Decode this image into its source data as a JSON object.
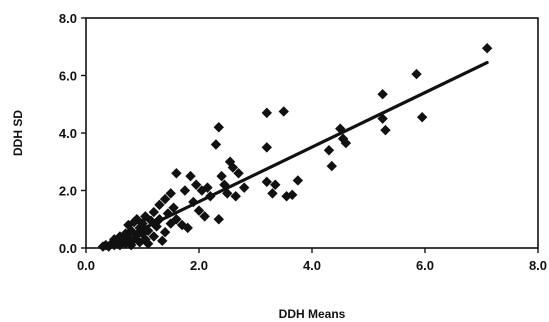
{
  "chart_data": {
    "type": "scatter",
    "title": "",
    "xlabel": "DDH Means",
    "ylabel": "DDH SD",
    "xlim": [
      0,
      8
    ],
    "ylim": [
      0,
      8
    ],
    "x_ticks": [
      "0.0",
      "2.0",
      "4.0",
      "6.0",
      "8.0"
    ],
    "y_ticks": [
      "0.0",
      "2.0",
      "4.0",
      "6.0",
      "8.0"
    ],
    "grid": false,
    "legend": "none",
    "marker": "diamond",
    "marker_color": "#111111",
    "series": [
      {
        "points": [
          [
            0.3,
            0.05
          ],
          [
            0.35,
            0.1
          ],
          [
            0.4,
            0.05
          ],
          [
            0.45,
            0.15
          ],
          [
            0.5,
            0.1
          ],
          [
            0.5,
            0.3
          ],
          [
            0.55,
            0.2
          ],
          [
            0.6,
            0.4
          ],
          [
            0.6,
            0.1
          ],
          [
            0.65,
            0.25
          ],
          [
            0.7,
            0.5
          ],
          [
            0.7,
            0.15
          ],
          [
            0.75,
            0.8
          ],
          [
            0.75,
            0.35
          ],
          [
            0.8,
            0.6
          ],
          [
            0.8,
            0.1
          ],
          [
            0.85,
            0.9
          ],
          [
            0.85,
            0.3
          ],
          [
            0.9,
            0.45
          ],
          [
            0.9,
            1.0
          ],
          [
            0.95,
            0.2
          ],
          [
            0.95,
            0.7
          ],
          [
            1.0,
            0.5
          ],
          [
            1.0,
            0.85
          ],
          [
            1.05,
            0.3
          ],
          [
            1.05,
            1.1
          ],
          [
            1.1,
            0.6
          ],
          [
            1.1,
            0.15
          ],
          [
            1.15,
            0.95
          ],
          [
            1.2,
            1.25
          ],
          [
            1.2,
            0.4
          ],
          [
            1.25,
            0.75
          ],
          [
            1.3,
            1.5
          ],
          [
            1.3,
            1.0
          ],
          [
            1.35,
            0.25
          ],
          [
            1.4,
            1.7
          ],
          [
            1.4,
            0.55
          ],
          [
            1.45,
            1.2
          ],
          [
            1.5,
            1.9
          ],
          [
            1.5,
            0.85
          ],
          [
            1.55,
            1.4
          ],
          [
            1.6,
            2.6
          ],
          [
            1.6,
            1.0
          ],
          [
            1.7,
            0.8
          ],
          [
            1.75,
            2.0
          ],
          [
            1.8,
            0.7
          ],
          [
            1.85,
            2.5
          ],
          [
            1.9,
            1.6
          ],
          [
            1.95,
            2.2
          ],
          [
            2.0,
            1.3
          ],
          [
            2.05,
            2.0
          ],
          [
            2.1,
            1.1
          ],
          [
            2.15,
            2.1
          ],
          [
            2.2,
            1.8
          ],
          [
            2.3,
            3.6
          ],
          [
            2.35,
            4.2
          ],
          [
            2.35,
            1.0
          ],
          [
            2.4,
            2.5
          ],
          [
            2.45,
            2.2
          ],
          [
            2.5,
            1.9
          ],
          [
            2.55,
            3.0
          ],
          [
            2.6,
            2.8
          ],
          [
            2.65,
            1.8
          ],
          [
            2.7,
            2.6
          ],
          [
            2.8,
            2.1
          ],
          [
            3.2,
            4.7
          ],
          [
            3.2,
            3.5
          ],
          [
            3.2,
            2.3
          ],
          [
            3.3,
            1.9
          ],
          [
            3.35,
            2.2
          ],
          [
            3.5,
            4.75
          ],
          [
            3.55,
            1.8
          ],
          [
            3.65,
            1.85
          ],
          [
            3.75,
            2.35
          ],
          [
            4.3,
            3.4
          ],
          [
            4.35,
            2.85
          ],
          [
            4.5,
            4.15
          ],
          [
            4.55,
            3.8
          ],
          [
            4.6,
            3.65
          ],
          [
            5.25,
            5.35
          ],
          [
            5.25,
            4.5
          ],
          [
            5.3,
            4.1
          ],
          [
            5.85,
            6.05
          ],
          [
            5.95,
            4.55
          ],
          [
            7.1,
            6.95
          ]
        ]
      }
    ],
    "trendline": {
      "type": "linear",
      "from": [
        0.3,
        0.0
      ],
      "to": [
        7.1,
        6.45
      ]
    }
  }
}
